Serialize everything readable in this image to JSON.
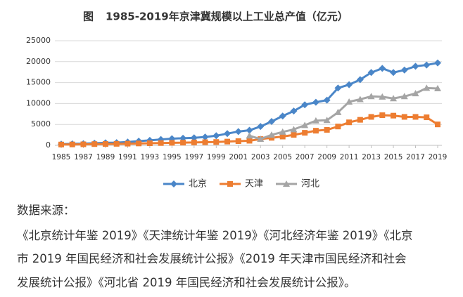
{
  "chart_data": {
    "type": "line",
    "figure_label": "图",
    "title": "1985-2019年京津冀规模以上工业总产值（亿元）",
    "x": [
      1985,
      1986,
      1987,
      1988,
      1989,
      1990,
      1991,
      1992,
      1993,
      1994,
      1995,
      1996,
      1997,
      1998,
      1999,
      2000,
      2001,
      2002,
      2003,
      2004,
      2005,
      2006,
      2007,
      2008,
      2009,
      2010,
      2011,
      2012,
      2013,
      2014,
      2015,
      2016,
      2017,
      2018,
      2019
    ],
    "xlim": [
      1985,
      2019
    ],
    "xticks": [
      1985,
      1987,
      1989,
      1991,
      1993,
      1995,
      1997,
      1999,
      2001,
      2003,
      2005,
      2007,
      2009,
      2011,
      2013,
      2015,
      2017,
      2019
    ],
    "ylim": [
      0,
      25000
    ],
    "yticks": [
      0,
      5000,
      10000,
      15000,
      20000,
      25000
    ],
    "grid": true,
    "legend": "bottom",
    "series": [
      {
        "name": "北京",
        "color": "#4a86c8",
        "marker": "diamond",
        "values": [
          300,
          350,
          400,
          500,
          600,
          650,
          800,
          1000,
          1200,
          1400,
          1600,
          1700,
          1800,
          2000,
          2300,
          2800,
          3300,
          3600,
          4500,
          5700,
          7000,
          8200,
          9700,
          10300,
          10800,
          13700,
          14500,
          15700,
          17400,
          18400,
          17400,
          18000,
          18900,
          19200,
          19700
        ]
      },
      {
        "name": "天津",
        "color": "#ed7d31",
        "marker": "square",
        "values": [
          200,
          220,
          250,
          300,
          330,
          360,
          400,
          450,
          500,
          550,
          600,
          650,
          700,
          750,
          800,
          900,
          1000,
          1100,
          1500,
          1800,
          2100,
          2500,
          3000,
          3500,
          3700,
          4500,
          5500,
          6100,
          6800,
          7200,
          7100,
          6800,
          6800,
          6700,
          5000
        ]
      },
      {
        "name": "河北",
        "color": "#a5a5a5",
        "marker": "triangle",
        "values": [
          null,
          null,
          null,
          null,
          null,
          null,
          null,
          null,
          null,
          null,
          null,
          null,
          null,
          null,
          null,
          null,
          null,
          2300,
          1500,
          2500,
          3200,
          3800,
          4800,
          5900,
          6000,
          7900,
          10400,
          11000,
          11700,
          11600,
          11200,
          11700,
          12400,
          13700,
          13600
        ]
      }
    ]
  },
  "source_label": "数据来源：",
  "source_lines": [
    "《北京统计年鉴 2019》《天津统计年鉴 2019》《河北经济年鉴 2019》《北京",
    "市 2019 年国民经济和社会发展统计公报》《2019 年天津市国民经济和社会",
    "发展统计公报》《河北省 2019 年国民经济和社会发展统计公报》。"
  ]
}
